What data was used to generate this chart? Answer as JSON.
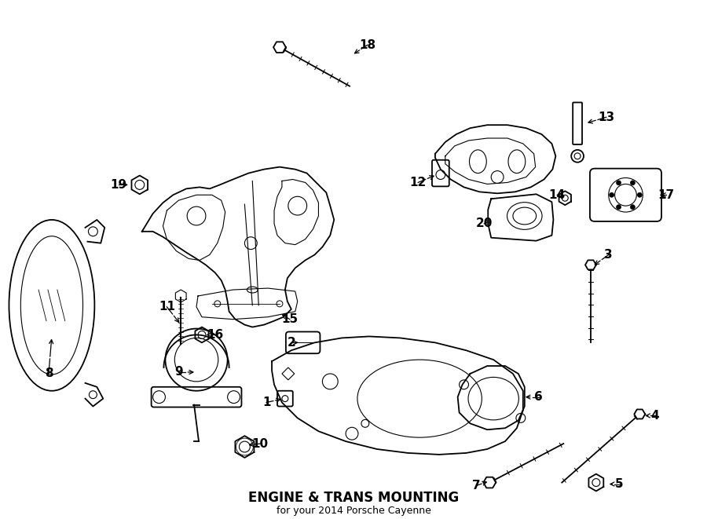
{
  "title": "ENGINE & TRANS MOUNTING",
  "subtitle": "for your 2014 Porsche Cayenne",
  "bg": "#ffffff",
  "lc": "#000000",
  "fig_w": 9.0,
  "fig_h": 6.61,
  "dpi": 100
}
